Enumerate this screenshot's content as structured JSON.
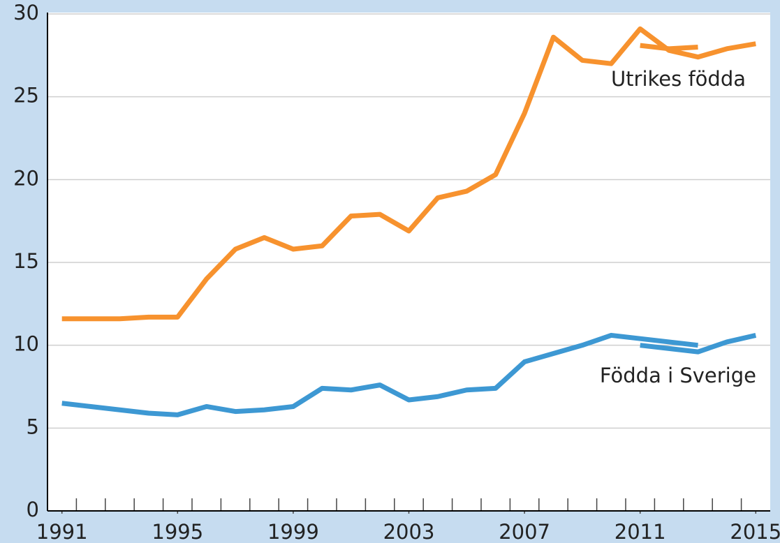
{
  "chart_data": {
    "type": "line",
    "x": [
      1991,
      1992,
      1993,
      1994,
      1995,
      1996,
      1997,
      1998,
      1999,
      2000,
      2001,
      2002,
      2003,
      2004,
      2005,
      2006,
      2007,
      2008,
      2009,
      2010,
      2011,
      2012,
      2013,
      2014,
      2015
    ],
    "series": [
      {
        "name": "Utrikes födda",
        "color": "#f7922e",
        "values": [
          11.6,
          11.6,
          11.6,
          11.7,
          11.7,
          14.0,
          15.8,
          16.5,
          15.8,
          16.0,
          17.8,
          17.9,
          16.9,
          18.9,
          19.3,
          20.3,
          24.0,
          28.6,
          27.2,
          27.0,
          29.1,
          27.8,
          27.4,
          27.9,
          28.2
        ]
      },
      {
        "name": "Födda i Sverige",
        "color": "#3d98d3",
        "values": [
          6.5,
          6.3,
          6.1,
          5.9,
          5.8,
          6.3,
          6.0,
          6.1,
          6.3,
          7.4,
          7.3,
          7.6,
          6.7,
          6.9,
          7.3,
          7.4,
          9.0,
          9.5,
          10.0,
          10.6,
          10.4,
          10.2,
          10.0,
          null,
          null
        ]
      },
      {
        "color": "#f7922e",
        "values": [
          null,
          null,
          null,
          null,
          null,
          null,
          null,
          null,
          null,
          null,
          null,
          null,
          null,
          null,
          null,
          null,
          null,
          null,
          null,
          null,
          28.1,
          27.9,
          28.0,
          null,
          null
        ]
      },
      {
        "color": "#3d98d3",
        "values": [
          null,
          null,
          null,
          null,
          null,
          null,
          null,
          null,
          null,
          null,
          null,
          null,
          null,
          null,
          null,
          null,
          null,
          null,
          null,
          null,
          10.0,
          9.8,
          9.6,
          10.2,
          10.6
        ]
      }
    ],
    "xlim": [
      1990.5,
      2015.5
    ],
    "xticks": [
      1991,
      1995,
      1999,
      2003,
      2007,
      2011,
      2015
    ],
    "ylim": [
      0,
      30
    ],
    "yticks": [
      0,
      5,
      10,
      15,
      20,
      25,
      30
    ],
    "grid": true
  }
}
